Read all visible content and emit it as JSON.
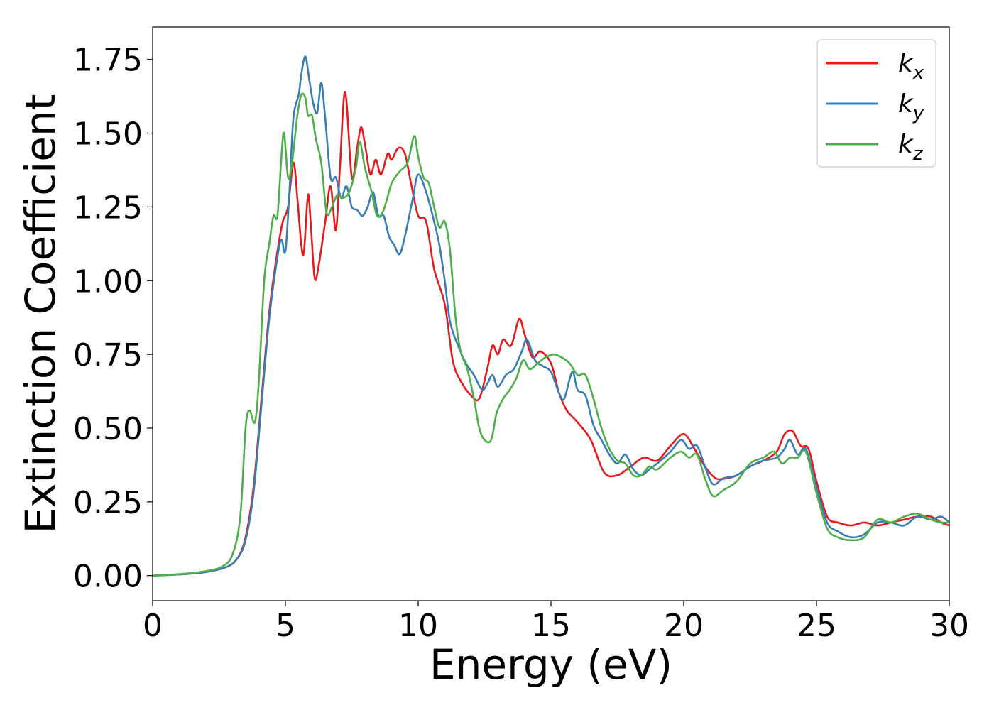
{
  "chart_data": {
    "type": "line",
    "xlabel": "Energy (eV)",
    "ylabel": "Extinction Coefficient",
    "xlim": [
      0,
      30
    ],
    "ylim": [
      -0.085,
      1.86
    ],
    "xticks": [
      0,
      5,
      10,
      15,
      20,
      25,
      30
    ],
    "xtick_labels": [
      "0",
      "5",
      "10",
      "15",
      "20",
      "25",
      "30"
    ],
    "yticks": [
      0.0,
      0.25,
      0.5,
      0.75,
      1.0,
      1.25,
      1.5,
      1.75
    ],
    "ytick_labels": [
      "0.00",
      "0.25",
      "0.50",
      "0.75",
      "1.00",
      "1.25",
      "1.50",
      "1.75"
    ],
    "grid": false,
    "legend_position": "top-right",
    "series": [
      {
        "name": "k_x",
        "label_base": "k",
        "label_sub": "x",
        "color": "#e41a1c",
        "points": [
          [
            0,
            0
          ],
          [
            1,
            0.004
          ],
          [
            2,
            0.012
          ],
          [
            2.8,
            0.03
          ],
          [
            3.2,
            0.06
          ],
          [
            3.5,
            0.13
          ],
          [
            3.8,
            0.3
          ],
          [
            4.1,
            0.6
          ],
          [
            4.4,
            0.9
          ],
          [
            4.7,
            1.1
          ],
          [
            4.9,
            1.2
          ],
          [
            5.1,
            1.25
          ],
          [
            5.3,
            1.4
          ],
          [
            5.45,
            1.28
          ],
          [
            5.6,
            1.12
          ],
          [
            5.7,
            1.1
          ],
          [
            5.85,
            1.29
          ],
          [
            5.95,
            1.2
          ],
          [
            6.1,
            1.01
          ],
          [
            6.25,
            1.05
          ],
          [
            6.5,
            1.2
          ],
          [
            6.7,
            1.32
          ],
          [
            6.9,
            1.17
          ],
          [
            7.05,
            1.38
          ],
          [
            7.25,
            1.64
          ],
          [
            7.5,
            1.35
          ],
          [
            7.7,
            1.45
          ],
          [
            7.85,
            1.52
          ],
          [
            8.0,
            1.46
          ],
          [
            8.2,
            1.36
          ],
          [
            8.4,
            1.41
          ],
          [
            8.6,
            1.36
          ],
          [
            8.85,
            1.43
          ],
          [
            9.0,
            1.41
          ],
          [
            9.25,
            1.45
          ],
          [
            9.5,
            1.43
          ],
          [
            9.75,
            1.32
          ],
          [
            10.0,
            1.22
          ],
          [
            10.3,
            1.2
          ],
          [
            10.6,
            1.04
          ],
          [
            11.0,
            0.92
          ],
          [
            11.3,
            0.73
          ],
          [
            11.6,
            0.66
          ],
          [
            12.0,
            0.61
          ],
          [
            12.3,
            0.6
          ],
          [
            12.6,
            0.7
          ],
          [
            12.8,
            0.78
          ],
          [
            13.0,
            0.75
          ],
          [
            13.2,
            0.8
          ],
          [
            13.5,
            0.78
          ],
          [
            13.8,
            0.87
          ],
          [
            14.0,
            0.82
          ],
          [
            14.3,
            0.74
          ],
          [
            14.6,
            0.76
          ],
          [
            15.0,
            0.72
          ],
          [
            15.3,
            0.62
          ],
          [
            15.6,
            0.56
          ],
          [
            16.0,
            0.52
          ],
          [
            16.5,
            0.46
          ],
          [
            17.0,
            0.35
          ],
          [
            17.5,
            0.34
          ],
          [
            18.0,
            0.37
          ],
          [
            18.5,
            0.4
          ],
          [
            19.0,
            0.39
          ],
          [
            19.5,
            0.44
          ],
          [
            20.0,
            0.48
          ],
          [
            20.4,
            0.43
          ],
          [
            20.8,
            0.37
          ],
          [
            21.2,
            0.33
          ],
          [
            21.6,
            0.33
          ],
          [
            22.0,
            0.34
          ],
          [
            22.5,
            0.37
          ],
          [
            23.0,
            0.39
          ],
          [
            23.5,
            0.42
          ],
          [
            23.8,
            0.48
          ],
          [
            24.1,
            0.49
          ],
          [
            24.4,
            0.44
          ],
          [
            24.7,
            0.43
          ],
          [
            25.0,
            0.32
          ],
          [
            25.4,
            0.2
          ],
          [
            25.8,
            0.18
          ],
          [
            26.3,
            0.17
          ],
          [
            26.8,
            0.18
          ],
          [
            27.3,
            0.17
          ],
          [
            27.8,
            0.18
          ],
          [
            28.3,
            0.19
          ],
          [
            28.8,
            0.2
          ],
          [
            29.3,
            0.2
          ],
          [
            29.7,
            0.18
          ],
          [
            30.0,
            0.17
          ]
        ]
      },
      {
        "name": "k_y",
        "label_base": "k",
        "label_sub": "y",
        "color": "#377eb8",
        "points": [
          [
            0,
            0
          ],
          [
            1,
            0.004
          ],
          [
            2,
            0.012
          ],
          [
            2.8,
            0.03
          ],
          [
            3.2,
            0.06
          ],
          [
            3.5,
            0.12
          ],
          [
            3.8,
            0.28
          ],
          [
            4.1,
            0.58
          ],
          [
            4.4,
            0.88
          ],
          [
            4.7,
            1.08
          ],
          [
            4.85,
            1.14
          ],
          [
            5.0,
            1.1
          ],
          [
            5.15,
            1.3
          ],
          [
            5.3,
            1.55
          ],
          [
            5.5,
            1.63
          ],
          [
            5.6,
            1.7
          ],
          [
            5.75,
            1.76
          ],
          [
            5.9,
            1.68
          ],
          [
            6.05,
            1.6
          ],
          [
            6.2,
            1.57
          ],
          [
            6.35,
            1.67
          ],
          [
            6.5,
            1.55
          ],
          [
            6.7,
            1.35
          ],
          [
            6.9,
            1.35
          ],
          [
            7.1,
            1.28
          ],
          [
            7.3,
            1.32
          ],
          [
            7.5,
            1.25
          ],
          [
            7.7,
            1.24
          ],
          [
            7.9,
            1.22
          ],
          [
            8.1,
            1.25
          ],
          [
            8.3,
            1.3
          ],
          [
            8.5,
            1.22
          ],
          [
            8.7,
            1.22
          ],
          [
            8.9,
            1.15
          ],
          [
            9.1,
            1.12
          ],
          [
            9.3,
            1.09
          ],
          [
            9.5,
            1.15
          ],
          [
            9.8,
            1.28
          ],
          [
            10.0,
            1.36
          ],
          [
            10.3,
            1.3
          ],
          [
            10.6,
            1.2
          ],
          [
            10.8,
            1.12
          ],
          [
            11.0,
            1.0
          ],
          [
            11.2,
            0.86
          ],
          [
            11.5,
            0.78
          ],
          [
            11.8,
            0.72
          ],
          [
            12.1,
            0.68
          ],
          [
            12.4,
            0.63
          ],
          [
            12.6,
            0.65
          ],
          [
            12.8,
            0.68
          ],
          [
            13.0,
            0.64
          ],
          [
            13.3,
            0.68
          ],
          [
            13.6,
            0.7
          ],
          [
            13.9,
            0.76
          ],
          [
            14.1,
            0.8
          ],
          [
            14.4,
            0.73
          ],
          [
            14.7,
            0.71
          ],
          [
            15.0,
            0.69
          ],
          [
            15.3,
            0.62
          ],
          [
            15.5,
            0.6
          ],
          [
            15.8,
            0.69
          ],
          [
            16.0,
            0.63
          ],
          [
            16.3,
            0.61
          ],
          [
            16.6,
            0.51
          ],
          [
            16.9,
            0.46
          ],
          [
            17.2,
            0.41
          ],
          [
            17.5,
            0.38
          ],
          [
            17.8,
            0.41
          ],
          [
            18.1,
            0.36
          ],
          [
            18.4,
            0.34
          ],
          [
            18.7,
            0.36
          ],
          [
            19.0,
            0.38
          ],
          [
            19.5,
            0.42
          ],
          [
            19.9,
            0.46
          ],
          [
            20.2,
            0.43
          ],
          [
            20.5,
            0.44
          ],
          [
            20.8,
            0.37
          ],
          [
            21.1,
            0.31
          ],
          [
            21.5,
            0.33
          ],
          [
            22.0,
            0.34
          ],
          [
            22.5,
            0.37
          ],
          [
            23.0,
            0.39
          ],
          [
            23.5,
            0.4
          ],
          [
            23.8,
            0.43
          ],
          [
            24.0,
            0.46
          ],
          [
            24.3,
            0.41
          ],
          [
            24.6,
            0.43
          ],
          [
            25.0,
            0.3
          ],
          [
            25.4,
            0.18
          ],
          [
            25.8,
            0.15
          ],
          [
            26.3,
            0.13
          ],
          [
            26.8,
            0.14
          ],
          [
            27.3,
            0.18
          ],
          [
            27.8,
            0.18
          ],
          [
            28.3,
            0.17
          ],
          [
            28.8,
            0.2
          ],
          [
            29.3,
            0.19
          ],
          [
            29.7,
            0.2
          ],
          [
            30.0,
            0.18
          ]
        ]
      },
      {
        "name": "k_z",
        "label_base": "k",
        "label_sub": "z",
        "color": "#4daf4a",
        "points": [
          [
            0,
            0
          ],
          [
            1,
            0.005
          ],
          [
            2,
            0.015
          ],
          [
            2.6,
            0.03
          ],
          [
            3.0,
            0.07
          ],
          [
            3.3,
            0.2
          ],
          [
            3.5,
            0.5
          ],
          [
            3.65,
            0.56
          ],
          [
            3.85,
            0.52
          ],
          [
            4.0,
            0.66
          ],
          [
            4.2,
            1.0
          ],
          [
            4.4,
            1.13
          ],
          [
            4.55,
            1.22
          ],
          [
            4.7,
            1.22
          ],
          [
            4.85,
            1.42
          ],
          [
            4.95,
            1.5
          ],
          [
            5.1,
            1.35
          ],
          [
            5.25,
            1.4
          ],
          [
            5.45,
            1.56
          ],
          [
            5.6,
            1.63
          ],
          [
            5.75,
            1.62
          ],
          [
            5.85,
            1.56
          ],
          [
            6.0,
            1.56
          ],
          [
            6.15,
            1.48
          ],
          [
            6.35,
            1.4
          ],
          [
            6.55,
            1.23
          ],
          [
            6.75,
            1.25
          ],
          [
            6.95,
            1.29
          ],
          [
            7.15,
            1.28
          ],
          [
            7.4,
            1.3
          ],
          [
            7.65,
            1.38
          ],
          [
            7.8,
            1.47
          ],
          [
            8.0,
            1.38
          ],
          [
            8.25,
            1.3
          ],
          [
            8.45,
            1.22
          ],
          [
            8.7,
            1.24
          ],
          [
            9.0,
            1.33
          ],
          [
            9.3,
            1.37
          ],
          [
            9.6,
            1.4
          ],
          [
            9.85,
            1.49
          ],
          [
            10.0,
            1.42
          ],
          [
            10.2,
            1.35
          ],
          [
            10.4,
            1.33
          ],
          [
            10.6,
            1.25
          ],
          [
            10.8,
            1.18
          ],
          [
            11.0,
            1.2
          ],
          [
            11.2,
            1.1
          ],
          [
            11.4,
            0.88
          ],
          [
            11.6,
            0.76
          ],
          [
            11.85,
            0.7
          ],
          [
            12.1,
            0.6
          ],
          [
            12.3,
            0.5
          ],
          [
            12.5,
            0.46
          ],
          [
            12.75,
            0.46
          ],
          [
            12.95,
            0.55
          ],
          [
            13.2,
            0.6
          ],
          [
            13.45,
            0.63
          ],
          [
            13.7,
            0.67
          ],
          [
            13.95,
            0.73
          ],
          [
            14.2,
            0.7
          ],
          [
            14.5,
            0.72
          ],
          [
            14.8,
            0.74
          ],
          [
            15.1,
            0.75
          ],
          [
            15.4,
            0.74
          ],
          [
            15.7,
            0.72
          ],
          [
            16.0,
            0.68
          ],
          [
            16.3,
            0.68
          ],
          [
            16.6,
            0.6
          ],
          [
            16.9,
            0.5
          ],
          [
            17.2,
            0.43
          ],
          [
            17.5,
            0.39
          ],
          [
            17.8,
            0.38
          ],
          [
            18.1,
            0.34
          ],
          [
            18.4,
            0.34
          ],
          [
            18.7,
            0.37
          ],
          [
            19.0,
            0.36
          ],
          [
            19.5,
            0.4
          ],
          [
            19.9,
            0.42
          ],
          [
            20.2,
            0.4
          ],
          [
            20.5,
            0.41
          ],
          [
            20.8,
            0.33
          ],
          [
            21.1,
            0.27
          ],
          [
            21.5,
            0.29
          ],
          [
            22.0,
            0.32
          ],
          [
            22.5,
            0.38
          ],
          [
            23.0,
            0.4
          ],
          [
            23.4,
            0.42
          ],
          [
            23.7,
            0.38
          ],
          [
            24.0,
            0.4
          ],
          [
            24.3,
            0.4
          ],
          [
            24.6,
            0.42
          ],
          [
            25.0,
            0.28
          ],
          [
            25.4,
            0.16
          ],
          [
            25.8,
            0.13
          ],
          [
            26.3,
            0.12
          ],
          [
            26.8,
            0.13
          ],
          [
            27.3,
            0.19
          ],
          [
            27.8,
            0.18
          ],
          [
            28.3,
            0.2
          ],
          [
            28.8,
            0.21
          ],
          [
            29.3,
            0.19
          ],
          [
            29.7,
            0.18
          ],
          [
            30.0,
            0.18
          ]
        ]
      }
    ]
  }
}
